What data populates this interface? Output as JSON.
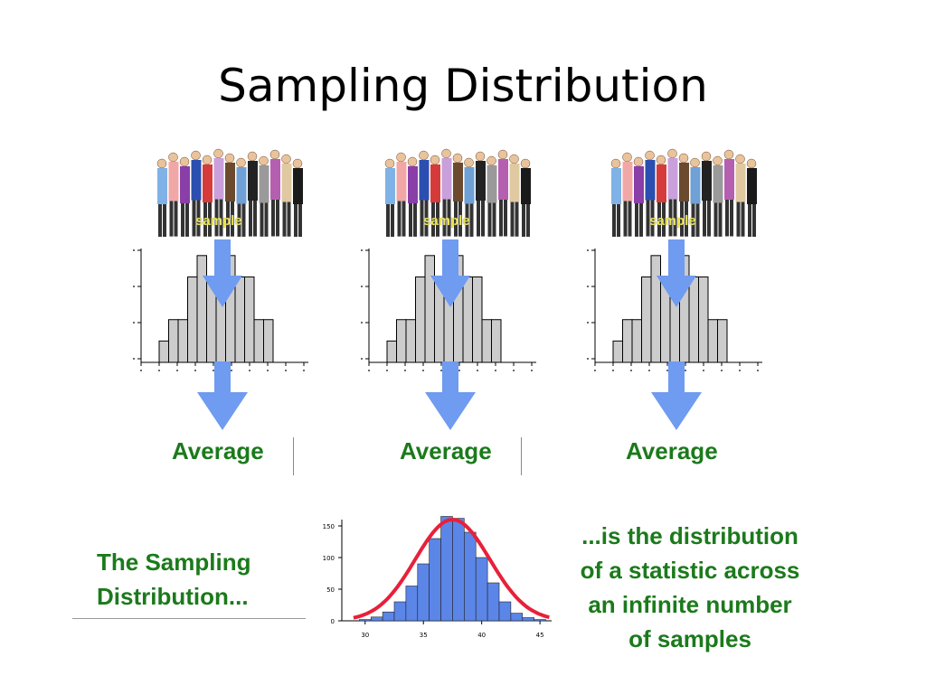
{
  "title": "Sampling Distribution",
  "columns": [
    {
      "sample_label": "sample",
      "average_label": "Average"
    },
    {
      "sample_label": "sample",
      "average_label": "Average"
    },
    {
      "sample_label": "sample",
      "average_label": "Average"
    }
  ],
  "sampling_text": {
    "left_lines": [
      "The Sampling",
      "Distribution..."
    ],
    "right_lines": [
      "...is the distribution",
      "of a statistic across",
      "an infinite number",
      "of samples"
    ]
  },
  "colors": {
    "arrow": "#6f9bf0",
    "green_text": "#1b7a1b",
    "hist_bar": "#cccccc",
    "dist_bar": "#5b86e8",
    "curve": "#e8203a"
  },
  "chart_data": [
    {
      "type": "bar",
      "description": "sample histogram (same for each of the three samples)",
      "values": [
        1,
        2,
        2,
        4,
        5,
        4,
        5,
        5,
        4,
        4,
        2,
        2
      ],
      "ylim": [
        0,
        5.5
      ]
    },
    {
      "type": "bar",
      "description": "sampling distribution histogram with normal curve overlay",
      "x_ticks": [
        "30",
        "35",
        "40",
        "45"
      ],
      "y_ticks": [
        "0",
        "50",
        "100",
        "150"
      ],
      "xlim": [
        28,
        46
      ],
      "ylim": [
        0,
        160
      ],
      "bins_x": [
        30,
        31,
        32,
        33,
        34,
        35,
        36,
        37,
        38,
        39,
        40,
        41,
        42,
        43,
        44,
        45
      ],
      "values": [
        2,
        6,
        14,
        30,
        55,
        90,
        130,
        165,
        162,
        140,
        100,
        60,
        30,
        12,
        5,
        2
      ],
      "curve": {
        "mean": 37.5,
        "sd": 3.2,
        "peak": 160
      }
    }
  ]
}
